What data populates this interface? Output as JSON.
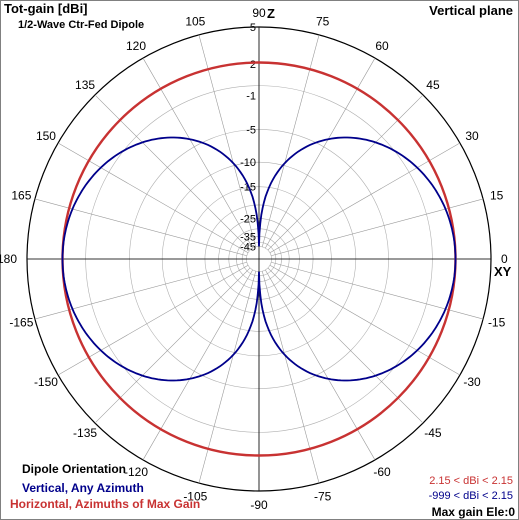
{
  "window": {
    "title": "Tot-gain [dBi]",
    "subtitle": "1/2-Wave Ctr-Fed Dipole",
    "plane": "Vertical plane"
  },
  "legend": {
    "heading": "Dipole Orientation",
    "entries": [
      {
        "label": "Vertical, Any Azimuth",
        "range": "-999 < dBi < 2.15",
        "color": "#00008b"
      },
      {
        "label": "Horizontal, Azimuths of Max Gain",
        "range": "2.15 < dBi < 2.15",
        "color": "#c83232"
      }
    ]
  },
  "footer": {
    "max_gain": "Max gain Ele:0"
  },
  "chart_data": {
    "type": "polar-line",
    "scale": "log-periodic dB",
    "radial_ticks": [
      "5",
      "2",
      "-1",
      "-5",
      "-10",
      "-15",
      "-25",
      "-35",
      "-45"
    ],
    "radial_tick_values": [
      5,
      2,
      -1,
      -5,
      -10,
      -15,
      -25,
      -35,
      -45
    ],
    "angle_ticks": [
      "90",
      "75",
      "60",
      "45",
      "30",
      "15",
      "0",
      "-15",
      "-30",
      "-45",
      "-60",
      "-75",
      "-90",
      "-105",
      "-120",
      "-135",
      "-150",
      "-165",
      "180",
      "165",
      "150",
      "135",
      "120",
      "105"
    ],
    "angle_tick_values": [
      90,
      75,
      60,
      45,
      30,
      15,
      0,
      -15,
      -30,
      -45,
      -60,
      -75,
      -90,
      -105,
      -120,
      -135,
      -150,
      -165,
      180,
      165,
      150,
      135,
      120,
      105
    ],
    "axis_labels": {
      "z": "Z",
      "xy": "XY"
    },
    "grid": true,
    "series": [
      {
        "name": "Horizontal, Azimuths of Max Gain",
        "color": "#c83232",
        "pattern": "omni",
        "max_dbi": 2.15
      },
      {
        "name": "Vertical, Any Azimuth",
        "color": "#00008b",
        "pattern": "dipole",
        "max_dbi": 2.15
      }
    ]
  }
}
